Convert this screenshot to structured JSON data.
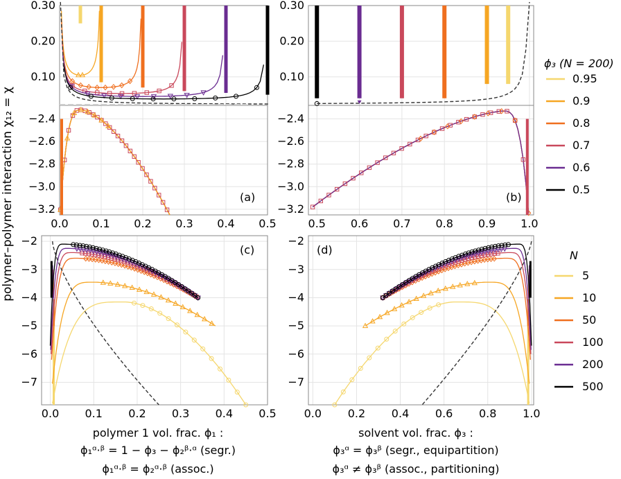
{
  "figure": {
    "ylabel": "polymer–polymer interaction χ₁₂ = χ",
    "xlabel_left_1": "polymer 1 vol. frac. ϕ₁ :",
    "xlabel_left_2": "ϕ₁ᵅ·ᵝ = 1 − ϕ₃ − ϕ₂ᵝ·ᵅ (segr.)",
    "xlabel_left_3": "ϕ₁ᵅ·ᵝ = ϕ₂ᵅ·ᵝ (assoc.)",
    "xlabel_right_1": "solvent vol. frac. ϕ₃ :",
    "xlabel_right_2": "ϕ₃ᵅ = ϕ₃ᵝ (segr., equipartition)",
    "xlabel_right_3": "ϕ₃ᵅ ≠ ϕ₃ᵝ (assoc., partitioning)"
  },
  "legend_top": {
    "title": "ϕ₃ (N = 200)",
    "entries": [
      {
        "label": "0.95",
        "color": "#f5d76e"
      },
      {
        "label": "0.9",
        "color": "#f6a623"
      },
      {
        "label": "0.8",
        "color": "#ef6f1f"
      },
      {
        "label": "0.7",
        "color": "#c9485b"
      },
      {
        "label": "0.6",
        "color": "#6a2c91"
      },
      {
        "label": "0.5",
        "color": "#000000"
      }
    ]
  },
  "legend_bottom": {
    "title": "N",
    "entries": [
      {
        "label": "5",
        "color": "#f5d76e"
      },
      {
        "label": "10",
        "color": "#f6a623"
      },
      {
        "label": "50",
        "color": "#ef6f1f"
      },
      {
        "label": "100",
        "color": "#c9485b"
      },
      {
        "label": "200",
        "color": "#6a2c91"
      },
      {
        "label": "500",
        "color": "#000000"
      }
    ]
  },
  "chart_data": [
    {
      "panel": "(a)",
      "type": "line",
      "xlim": [
        0,
        0.5
      ],
      "x_ticks": [
        "0.0",
        "0.1",
        "0.2",
        "0.3",
        "0.4",
        "0.5"
      ],
      "y_ticks_top": [
        "0.30",
        "0.20",
        "0.10"
      ],
      "y_ticks_bottom": [
        "-2.4",
        "-2.6",
        "-2.8",
        "-3.0",
        "-3.2"
      ],
      "ylim_top": [
        0.02,
        0.3
      ],
      "ylim_bottom": [
        -3.25,
        -2.28
      ],
      "series": [
        {
          "name": "0.95",
          "wall_x": 0.05,
          "min_chi": 0.23
        },
        {
          "name": "0.9",
          "wall_x": 0.1,
          "min_chi": 0.065
        },
        {
          "name": "0.8",
          "wall_x": 0.2,
          "min_chi": 0.05
        },
        {
          "name": "0.7",
          "wall_x": 0.3,
          "min_chi": 0.04
        },
        {
          "name": "0.6",
          "wall_x": 0.4,
          "min_chi": 0.035
        },
        {
          "name": "0.5",
          "wall_x": 0.5,
          "min_chi": 0.03
        }
      ],
      "assoc_curve": {
        "peak_x": 0.05,
        "peak_chi": -2.32,
        "end_x": 0.265,
        "end_chi": -3.25
      }
    },
    {
      "panel": "(b)",
      "type": "line",
      "xlim": [
        0.48,
        1.01
      ],
      "x_ticks": [
        "0.5",
        "0.6",
        "0.7",
        "0.8",
        "0.9",
        "1.0"
      ],
      "y_ticks_top": [
        "0.30",
        "0.20",
        "0.10"
      ],
      "y_ticks_bottom": [
        "-2.4",
        "-2.6",
        "-2.8",
        "-3.0",
        "-3.2"
      ],
      "ylim_top": [
        0.02,
        0.3
      ],
      "ylim_bottom": [
        -3.25,
        -2.28
      ],
      "series_x": [
        0.5,
        0.6,
        0.7,
        0.8,
        0.9,
        0.95
      ],
      "assoc_curve": {
        "start_x": 0.49,
        "start_chi": -3.18,
        "peak_x": 0.94,
        "peak_chi": -2.33
      }
    },
    {
      "panel": "(c)",
      "type": "line",
      "xlim": [
        -0.02,
        0.5
      ],
      "ylim": [
        -7.8,
        -1.8
      ],
      "x_ticks": [
        "0.0",
        "0.1",
        "0.2",
        "0.3",
        "0.4",
        "0.5"
      ],
      "y_ticks": [
        "-2",
        "-3",
        "-4",
        "-5",
        "-6",
        "-7"
      ],
      "series": [
        {
          "name": "5",
          "peak_x": 0.17,
          "peak_chi": -4.15,
          "end_x": 0.45,
          "end_chi": -7.8,
          "left_x": 0.005
        },
        {
          "name": "10",
          "peak_x": 0.1,
          "peak_chi": -3.45,
          "end_x": 0.38,
          "end_chi": -5.0,
          "left_x": 0.005
        },
        {
          "name": "50",
          "peak_x": 0.06,
          "peak_chi": -2.6,
          "end_x": 0.34,
          "end_chi": -4.0,
          "left_x": 0.003
        },
        {
          "name": "100",
          "peak_x": 0.05,
          "peak_chi": -2.4,
          "end_x": 0.34,
          "end_chi": -4.0,
          "left_x": 0.002
        },
        {
          "name": "200",
          "peak_x": 0.04,
          "peak_chi": -2.25,
          "end_x": 0.34,
          "end_chi": -4.0,
          "left_x": 0.001
        },
        {
          "name": "500",
          "peak_x": 0.03,
          "peak_chi": -2.1,
          "end_x": 0.34,
          "end_chi": -4.0,
          "left_x": 0.0
        }
      ]
    },
    {
      "panel": "(d)",
      "type": "line",
      "xlim": [
        -0.02,
        1.01
      ],
      "ylim": [
        -7.8,
        -1.8
      ],
      "x_ticks": [
        "0.0",
        "0.2",
        "0.4",
        "0.6",
        "0.8",
        "1.0"
      ],
      "y_ticks": [
        "-2",
        "-3",
        "-4",
        "-5",
        "-6",
        "-7"
      ],
      "series": [
        {
          "name": "5",
          "start_x": 0.1,
          "start_chi": -7.8,
          "peak_x": 0.65,
          "peak_chi": -4.15,
          "right_x": 0.99
        },
        {
          "name": "10",
          "start_x": 0.24,
          "start_chi": -5.0,
          "peak_x": 0.8,
          "peak_chi": -3.45,
          "right_x": 0.99
        },
        {
          "name": "50",
          "start_x": 0.32,
          "start_chi": -4.0,
          "peak_x": 0.88,
          "peak_chi": -2.6,
          "right_x": 0.995
        },
        {
          "name": "100",
          "start_x": 0.32,
          "start_chi": -4.0,
          "peak_x": 0.9,
          "peak_chi": -2.4,
          "right_x": 0.997
        },
        {
          "name": "200",
          "start_x": 0.32,
          "start_chi": -4.0,
          "peak_x": 0.92,
          "peak_chi": -2.25,
          "right_x": 0.998
        },
        {
          "name": "500",
          "start_x": 0.32,
          "start_chi": -4.0,
          "peak_x": 0.94,
          "peak_chi": -2.1,
          "right_x": 1.0
        }
      ]
    }
  ]
}
